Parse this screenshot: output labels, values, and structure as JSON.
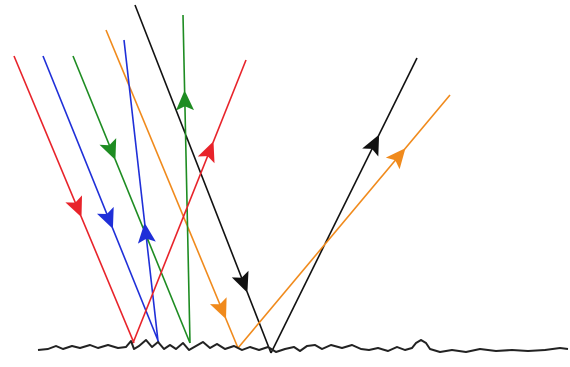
{
  "diagram": {
    "colors": {
      "red": "#e8232a",
      "blue": "#1f2fd8",
      "green": "#1e8c22",
      "orange": "#f08a1c",
      "black": "#111111",
      "surface": "#222222"
    },
    "rays": [
      {
        "name": "red-incident-ray",
        "color": "red"
      },
      {
        "name": "blue-incident-ray",
        "color": "blue"
      },
      {
        "name": "green-incident-ray",
        "color": "green"
      },
      {
        "name": "orange-incident-ray",
        "color": "orange"
      },
      {
        "name": "black-incident-ray",
        "color": "black"
      },
      {
        "name": "blue-reflected-ray",
        "color": "blue"
      },
      {
        "name": "green-reflected-ray",
        "color": "green"
      },
      {
        "name": "red-reflected-ray",
        "color": "red"
      },
      {
        "name": "black-reflected-ray",
        "color": "black"
      },
      {
        "name": "orange-reflected-ray",
        "color": "orange"
      }
    ]
  }
}
